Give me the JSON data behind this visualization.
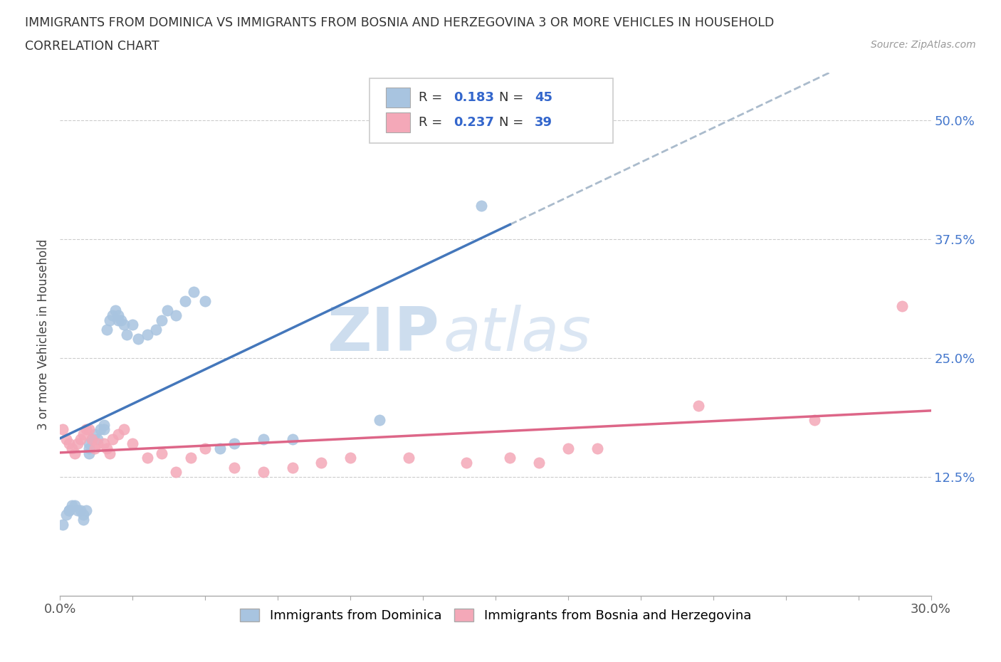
{
  "title_line1": "IMMIGRANTS FROM DOMINICA VS IMMIGRANTS FROM BOSNIA AND HERZEGOVINA 3 OR MORE VEHICLES IN HOUSEHOLD",
  "title_line2": "CORRELATION CHART",
  "source": "Source: ZipAtlas.com",
  "ylabel": "3 or more Vehicles in Household",
  "xlim": [
    0.0,
    0.3
  ],
  "ylim": [
    0.0,
    0.55
  ],
  "xticks": [
    0.0,
    0.025,
    0.05,
    0.075,
    0.1,
    0.125,
    0.15,
    0.175,
    0.2,
    0.225,
    0.25,
    0.275,
    0.3
  ],
  "xticklabels_show": {
    "0.0": "0.0%",
    "0.30": "30.0%"
  },
  "ytick_positions": [
    0.0,
    0.125,
    0.25,
    0.375,
    0.5
  ],
  "yticklabels": [
    "",
    "12.5%",
    "25.0%",
    "37.5%",
    "50.0%"
  ],
  "watermark_zip": "ZIP",
  "watermark_atlas": "atlas",
  "legend_label1": "Immigrants from Dominica",
  "legend_label2": "Immigrants from Bosnia and Herzegovina",
  "R1": 0.183,
  "N1": 45,
  "R2": 0.237,
  "N2": 39,
  "color1": "#a8c4e0",
  "color2": "#f4a8b8",
  "trendline1_color": "#4477bb",
  "trendline2_color": "#dd6688",
  "dashed_color": "#aabbcc",
  "scatter1_x": [
    0.001,
    0.002,
    0.003,
    0.003,
    0.004,
    0.005,
    0.006,
    0.007,
    0.008,
    0.008,
    0.009,
    0.01,
    0.01,
    0.01,
    0.011,
    0.012,
    0.013,
    0.014,
    0.015,
    0.015,
    0.016,
    0.017,
    0.018,
    0.019,
    0.02,
    0.02,
    0.021,
    0.022,
    0.023,
    0.025,
    0.027,
    0.03,
    0.033,
    0.035,
    0.037,
    0.04,
    0.043,
    0.046,
    0.05,
    0.055,
    0.06,
    0.07,
    0.08,
    0.11,
    0.145
  ],
  "scatter1_y": [
    0.075,
    0.085,
    0.09,
    0.09,
    0.095,
    0.095,
    0.09,
    0.09,
    0.085,
    0.08,
    0.09,
    0.16,
    0.155,
    0.15,
    0.165,
    0.17,
    0.165,
    0.175,
    0.18,
    0.175,
    0.28,
    0.29,
    0.295,
    0.3,
    0.295,
    0.29,
    0.29,
    0.285,
    0.275,
    0.285,
    0.27,
    0.275,
    0.28,
    0.29,
    0.3,
    0.295,
    0.31,
    0.32,
    0.31,
    0.155,
    0.16,
    0.165,
    0.165,
    0.185,
    0.41
  ],
  "scatter2_x": [
    0.001,
    0.002,
    0.003,
    0.004,
    0.005,
    0.006,
    0.007,
    0.008,
    0.009,
    0.01,
    0.011,
    0.012,
    0.013,
    0.015,
    0.016,
    0.017,
    0.018,
    0.02,
    0.022,
    0.025,
    0.03,
    0.035,
    0.04,
    0.045,
    0.05,
    0.06,
    0.07,
    0.08,
    0.09,
    0.1,
    0.12,
    0.14,
    0.155,
    0.165,
    0.175,
    0.185,
    0.22,
    0.26,
    0.29
  ],
  "scatter2_y": [
    0.175,
    0.165,
    0.16,
    0.155,
    0.15,
    0.16,
    0.165,
    0.17,
    0.175,
    0.175,
    0.165,
    0.155,
    0.16,
    0.16,
    0.155,
    0.15,
    0.165,
    0.17,
    0.175,
    0.16,
    0.145,
    0.15,
    0.13,
    0.145,
    0.155,
    0.135,
    0.13,
    0.135,
    0.14,
    0.145,
    0.145,
    0.14,
    0.145,
    0.14,
    0.155,
    0.155,
    0.2,
    0.185,
    0.305
  ],
  "background_color": "#ffffff",
  "grid_color": "#cccccc"
}
